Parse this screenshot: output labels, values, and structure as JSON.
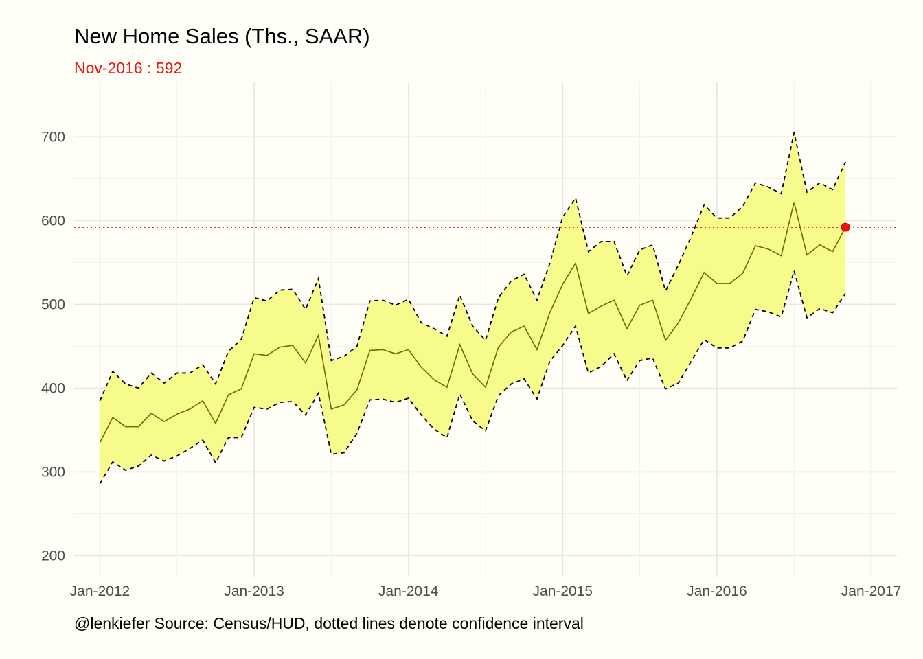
{
  "colors": {
    "background": "#fffff8",
    "band_fill": "#f7fb8c",
    "main_line": "#6b6b00",
    "ci_line": "#000000",
    "highlight": "#ee1111",
    "grid_major": "#e6e6e6",
    "grid_minor": "#f1f1f1"
  },
  "chart_data": {
    "type": "area",
    "title": "New Home Sales (Ths., SAAR)",
    "subtitle": "Nov-2016 : 592",
    "caption": "@lenkiefer Source: Census/HUD, dotted lines denote confidence interval",
    "xlabel": "",
    "ylabel": "",
    "x_start": "Jan-2012",
    "x_ticks": [
      "Jan-2012",
      "Jan-2013",
      "Jan-2014",
      "Jan-2015",
      "Jan-2016",
      "Jan-2017"
    ],
    "y_ticks": [
      200,
      300,
      400,
      500,
      600,
      700
    ],
    "xlim": [
      "Nov-2011",
      "Mar-2017"
    ],
    "ylim": [
      175,
      765
    ],
    "grid": true,
    "reference_line": {
      "y": 592,
      "style": "dotted"
    },
    "highlight_point": {
      "x": "Nov-2016",
      "y": 592
    },
    "series": [
      {
        "values": [
          335,
          365,
          354,
          354,
          370,
          360,
          369,
          375,
          385,
          358,
          392,
          399,
          441,
          439,
          449,
          451,
          430,
          463,
          375,
          380,
          398,
          445,
          446,
          441,
          446,
          425,
          410,
          401,
          452,
          417,
          401,
          449,
          467,
          474,
          446,
          490,
          524,
          549,
          489,
          498,
          505,
          471,
          499,
          505,
          457,
          478,
          507,
          538,
          525,
          525,
          537,
          570,
          566,
          558,
          622,
          559,
          571,
          563,
          592
        ]
      },
      {
        "values": [
          286,
          312,
          302,
          307,
          320,
          313,
          319,
          328,
          338,
          311,
          341,
          341,
          377,
          375,
          383,
          384,
          368,
          394,
          321,
          323,
          346,
          386,
          387,
          383,
          388,
          368,
          351,
          341,
          393,
          361,
          349,
          391,
          405,
          411,
          387,
          432,
          451,
          474,
          418,
          426,
          441,
          409,
          433,
          436,
          399,
          406,
          432,
          458,
          448,
          448,
          456,
          494,
          491,
          485,
          540,
          484,
          495,
          490,
          513
        ]
      },
      {
        "values": [
          385,
          420,
          405,
          400,
          418,
          406,
          418,
          418,
          428,
          405,
          444,
          458,
          508,
          504,
          517,
          518,
          494,
          531,
          433,
          438,
          450,
          504,
          505,
          499,
          506,
          478,
          471,
          462,
          511,
          474,
          457,
          508,
          528,
          536,
          505,
          549,
          604,
          627,
          563,
          575,
          575,
          534,
          565,
          571,
          516,
          547,
          581,
          619,
          603,
          603,
          617,
          645,
          640,
          632,
          705,
          634,
          645,
          637,
          670
        ]
      }
    ]
  }
}
